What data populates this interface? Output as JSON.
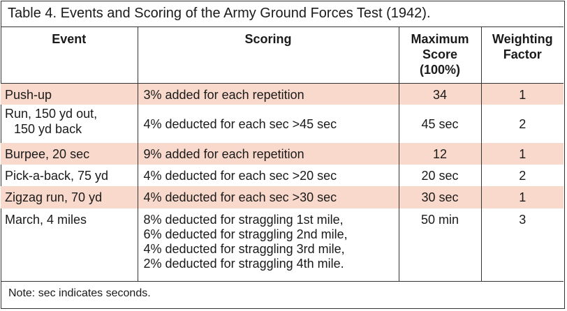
{
  "caption": "Table 4. Events and Scoring of the Army Ground Forces Test (1942).",
  "headers": {
    "event": "Event",
    "scoring": "Scoring",
    "max_line1": "Maximum",
    "max_line2": "Score",
    "max_line3": "(100%)",
    "weight_line1": "Weighting",
    "weight_line2": "Factor"
  },
  "rows": [
    {
      "event": "Push-up",
      "scoring": "3% added for each repetition",
      "max": "34",
      "weight": "1"
    },
    {
      "event_line1": "Run, 150 yd out,",
      "event_line2": "150 yd back",
      "scoring": "4% deducted for each sec >45 sec",
      "max": "45 sec",
      "weight": "2"
    },
    {
      "event": "Burpee, 20 sec",
      "scoring": "9% added for each repetition",
      "max": "12",
      "weight": "1"
    },
    {
      "event": "Pick-a-back, 75 yd",
      "scoring": "4% deducted for each sec >20 sec",
      "max": "20 sec",
      "weight": "2"
    },
    {
      "event": "Zigzag run, 70 yd",
      "scoring": "4% deducted for each sec >30 sec",
      "max": "30 sec",
      "weight": "1"
    },
    {
      "event": "March, 4 miles",
      "scoring_lines": [
        "8% deducted for straggling 1st mile,",
        "6% deducted for straggling 2nd mile,",
        "4% deducted for straggling 3rd mile,",
        "2% deducted for straggling 4th mile."
      ],
      "max": "50 min",
      "weight": "3"
    }
  ],
  "note": "Note: sec indicates seconds.",
  "colors": {
    "shade": "#f9d9cc",
    "rule": "#333333"
  }
}
